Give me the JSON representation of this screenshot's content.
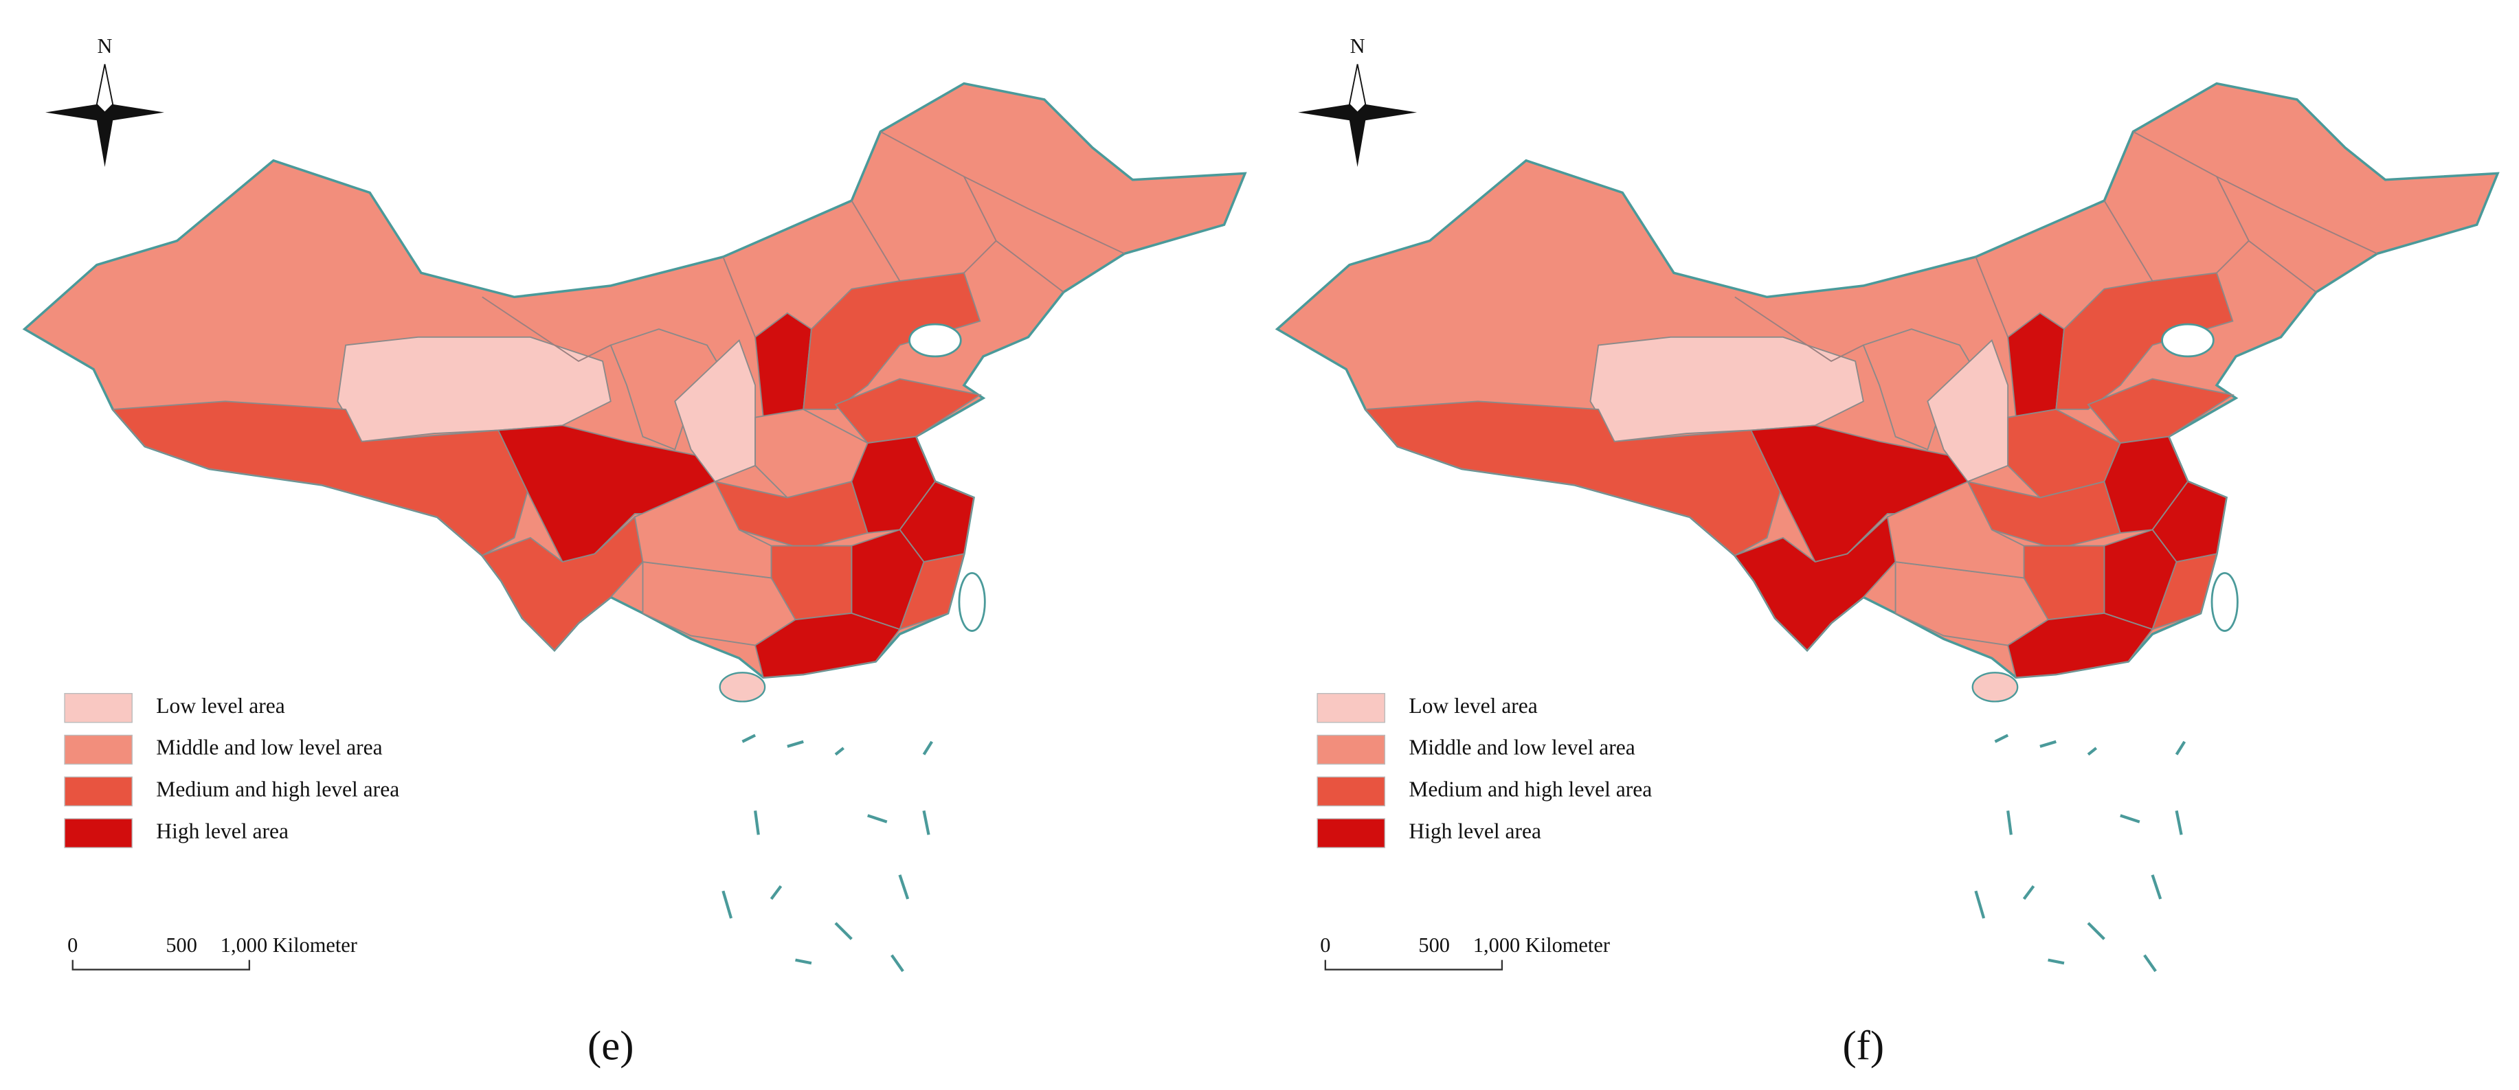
{
  "panels": [
    {
      "north": "N",
      "caption": "(e)",
      "legend": [
        {
          "label": "Low level area",
          "color": "#f9c8c2"
        },
        {
          "label": "Middle and low level area",
          "color": "#f28e7c"
        },
        {
          "label": "Medium and high level area",
          "color": "#e85440"
        },
        {
          "label": "High level area",
          "color": "#d20d0d"
        }
      ],
      "scale": [
        "0",
        "500",
        "1,000 Kilometer"
      ]
    },
    {
      "north": "N",
      "caption": "(f)",
      "legend": [
        {
          "label": "Low level area",
          "color": "#f9c8c2"
        },
        {
          "label": "Middle and low level area",
          "color": "#f28e7c"
        },
        {
          "label": "Medium and high level area",
          "color": "#e85440"
        },
        {
          "label": "High level area",
          "color": "#d20d0d"
        }
      ],
      "scale": [
        "0",
        "500",
        "1,000 Kilometer"
      ]
    }
  ]
}
